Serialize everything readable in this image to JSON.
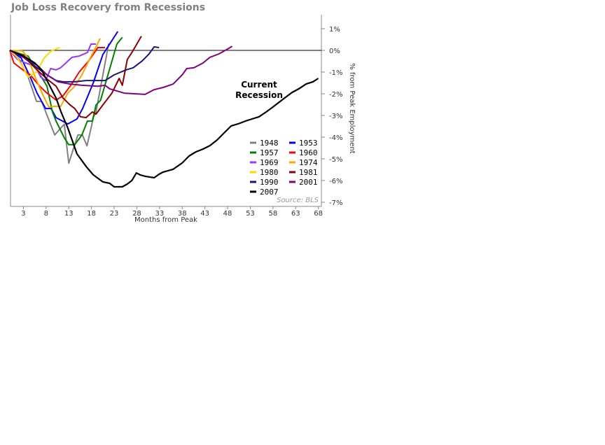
{
  "chart_data": {
    "type": "line",
    "title": "Job Loss Recovery from Recessions",
    "xlabel": "Months from Peak",
    "ylabel": "% from Peak Employment",
    "xlim": [
      0,
      68.5
    ],
    "ylim": [
      -7.3,
      1.6
    ],
    "x_ticks": [
      3,
      8,
      13,
      18,
      23,
      28,
      33,
      38,
      43,
      48,
      53,
      58,
      63,
      68
    ],
    "y_ticks": [
      1,
      0,
      -1,
      -2,
      -3,
      -4,
      -5,
      -6,
      -7
    ],
    "y_tick_labels": [
      "1%",
      "0%",
      "-1%",
      "-2%",
      "-3%",
      "-4%",
      "-5%",
      "-6%",
      "-7%"
    ],
    "y_axis_side": "right",
    "reference_line": 0,
    "annotation": [
      "Current",
      "Recession"
    ],
    "source": "Source: BLS",
    "legend_position": "bottom-right",
    "series": [
      {
        "name": "1948",
        "color": "#808080",
        "points": [
          [
            0,
            0
          ],
          [
            2,
            -0.4
          ],
          [
            4,
            -1.2
          ],
          [
            5.9,
            -2.35
          ],
          [
            7,
            -2.35
          ],
          [
            9.9,
            -3.9
          ],
          [
            12,
            -3.4
          ],
          [
            13,
            -5.2
          ],
          [
            15,
            -3.9
          ],
          [
            16,
            -3.9
          ],
          [
            17,
            -4.4
          ],
          [
            18,
            -3.5
          ],
          [
            18.4,
            -3.1
          ],
          [
            19,
            -2.84
          ],
          [
            21.8,
            0.32
          ]
        ]
      },
      {
        "name": "1953",
        "color": "#0000ff",
        "points": [
          [
            0,
            0
          ],
          [
            2.5,
            -0.35
          ],
          [
            4.5,
            -1.23
          ],
          [
            6,
            -1.97
          ],
          [
            7.9,
            -2.68
          ],
          [
            9.1,
            -2.68
          ],
          [
            10.2,
            -3.1
          ],
          [
            12.8,
            -3.39
          ],
          [
            14.8,
            -3.16
          ],
          [
            16,
            -2.7
          ],
          [
            18.4,
            -1.5
          ],
          [
            20.5,
            -0.2
          ],
          [
            23.8,
            0.87
          ]
        ]
      },
      {
        "name": "1957",
        "color": "#008000",
        "points": [
          [
            0,
            0
          ],
          [
            3,
            -0.2
          ],
          [
            4,
            -0.26
          ],
          [
            6.3,
            -1.0
          ],
          [
            8.2,
            -1.65
          ],
          [
            9.4,
            -2.84
          ],
          [
            10.2,
            -3.26
          ],
          [
            12,
            -4.03
          ],
          [
            13,
            -4.35
          ],
          [
            14.3,
            -4.35
          ],
          [
            15.9,
            -3.9
          ],
          [
            17.1,
            -3.26
          ],
          [
            18.2,
            -3.26
          ],
          [
            19,
            -2.52
          ],
          [
            20,
            -2.3
          ],
          [
            21.8,
            -1.0
          ],
          [
            23.6,
            0.29
          ],
          [
            24.8,
            0.6
          ]
        ]
      },
      {
        "name": "1960",
        "color": "#ff0000",
        "points": [
          [
            0,
            0
          ],
          [
            0.9,
            -0.58
          ],
          [
            2.5,
            -0.84
          ],
          [
            4.5,
            -1.13
          ],
          [
            6.6,
            -1.65
          ],
          [
            8.2,
            -1.97
          ],
          [
            10.2,
            -2.29
          ],
          [
            11.7,
            -2.1
          ],
          [
            13.3,
            -1.65
          ],
          [
            15.3,
            -1.0
          ],
          [
            17.4,
            -0.48
          ],
          [
            19.4,
            0.13
          ],
          [
            21,
            0.13
          ]
        ]
      },
      {
        "name": "1969",
        "color": "#9933ff",
        "points": [
          [
            0,
            0
          ],
          [
            1.7,
            -0.42
          ],
          [
            3.5,
            -0.58
          ],
          [
            5.6,
            -0.74
          ],
          [
            6.8,
            -1.23
          ],
          [
            7.9,
            -1.39
          ],
          [
            9,
            -0.84
          ],
          [
            10.2,
            -0.9
          ],
          [
            11.2,
            -0.8
          ],
          [
            13.7,
            -0.32
          ],
          [
            15.3,
            -0.26
          ],
          [
            17.1,
            -0.1
          ],
          [
            17.9,
            0.29
          ],
          [
            19,
            0.29
          ]
        ]
      },
      {
        "name": "1974",
        "color": "#ffa500",
        "points": [
          [
            0,
            0
          ],
          [
            2.8,
            -0.03
          ],
          [
            4,
            -0.35
          ],
          [
            5.6,
            -1.23
          ],
          [
            7.1,
            -1.97
          ],
          [
            8.6,
            -2.61
          ],
          [
            9.9,
            -2.58
          ],
          [
            11.2,
            -2.58
          ],
          [
            12.8,
            -1.97
          ],
          [
            14.3,
            -1.65
          ],
          [
            15.9,
            -1.13
          ],
          [
            17.4,
            -0.48
          ],
          [
            19,
            0.16
          ],
          [
            19.9,
            0.55
          ]
        ]
      },
      {
        "name": "1980",
        "color": "#ffd700",
        "points": [
          [
            0,
            0
          ],
          [
            1.4,
            -0.26
          ],
          [
            3,
            -0.8
          ],
          [
            4,
            -1.23
          ],
          [
            5.9,
            -1.0
          ],
          [
            7.6,
            -0.35
          ],
          [
            9.1,
            -0.03
          ],
          [
            11,
            0.13
          ]
        ]
      },
      {
        "name": "1981",
        "color": "#8b0000",
        "points": [
          [
            0,
            0
          ],
          [
            3,
            -0.26
          ],
          [
            6,
            -0.9
          ],
          [
            8.2,
            -1.32
          ],
          [
            10.2,
            -1.65
          ],
          [
            11.7,
            -2.19
          ],
          [
            13.3,
            -2.52
          ],
          [
            14.3,
            -2.68
          ],
          [
            15.6,
            -3.06
          ],
          [
            16.8,
            -3.1
          ],
          [
            18.2,
            -2.84
          ],
          [
            19,
            -2.94
          ],
          [
            20.5,
            -2.52
          ],
          [
            22.5,
            -1.97
          ],
          [
            24.1,
            -1.29
          ],
          [
            24.8,
            -1.61
          ],
          [
            25.9,
            -0.42
          ],
          [
            26.9,
            -0.1
          ],
          [
            29,
            0.65
          ]
        ]
      },
      {
        "name": "1990",
        "color": "#191970",
        "points": [
          [
            0,
            0
          ],
          [
            3,
            -0.32
          ],
          [
            6,
            -0.8
          ],
          [
            8.2,
            -1.13
          ],
          [
            10.2,
            -1.39
          ],
          [
            11.7,
            -1.45
          ],
          [
            14.3,
            -1.45
          ],
          [
            16.8,
            -1.39
          ],
          [
            19.4,
            -1.39
          ],
          [
            21,
            -1.39
          ],
          [
            23,
            -1.13
          ],
          [
            25.6,
            -0.9
          ],
          [
            27.2,
            -0.8
          ],
          [
            29.2,
            -0.48
          ],
          [
            30.7,
            -0.16
          ],
          [
            31.8,
            0.16
          ],
          [
            32.9,
            0.13
          ]
        ]
      },
      {
        "name": "2001",
        "color": "#800080",
        "points": [
          [
            0,
            0
          ],
          [
            3,
            -0.32
          ],
          [
            6,
            -0.68
          ],
          [
            8.2,
            -1.13
          ],
          [
            10.6,
            -1.45
          ],
          [
            13.3,
            -1.55
          ],
          [
            15.9,
            -1.61
          ],
          [
            19.4,
            -1.65
          ],
          [
            21,
            -1.61
          ],
          [
            22,
            -1.77
          ],
          [
            25.2,
            -1.97
          ],
          [
            29.8,
            -2.03
          ],
          [
            31.8,
            -1.81
          ],
          [
            33.8,
            -1.71
          ],
          [
            36,
            -1.55
          ],
          [
            38,
            -1.13
          ],
          [
            39,
            -0.84
          ],
          [
            40.6,
            -0.8
          ],
          [
            42.6,
            -0.58
          ],
          [
            44.1,
            -0.32
          ],
          [
            46.1,
            -0.16
          ],
          [
            48,
            0.06
          ],
          [
            49,
            0.19
          ]
        ]
      },
      {
        "name": "2007",
        "color": "#000000",
        "points": [
          [
            0,
            0
          ],
          [
            3,
            -0.26
          ],
          [
            5.5,
            -0.58
          ],
          [
            7,
            -0.9
          ],
          [
            8.6,
            -1.55
          ],
          [
            10.2,
            -2.2
          ],
          [
            11.3,
            -2.84
          ],
          [
            12.8,
            -3.58
          ],
          [
            14.8,
            -4.77
          ],
          [
            16.8,
            -5.35
          ],
          [
            18.4,
            -5.74
          ],
          [
            20.5,
            -6.06
          ],
          [
            22,
            -6.13
          ],
          [
            23,
            -6.29
          ],
          [
            24.8,
            -6.29
          ],
          [
            25.9,
            -6.16
          ],
          [
            26.9,
            -6.0
          ],
          [
            27.9,
            -5.65
          ],
          [
            28.7,
            -5.74
          ],
          [
            29.9,
            -5.81
          ],
          [
            31.8,
            -5.87
          ],
          [
            32.9,
            -5.71
          ],
          [
            33.8,
            -5.61
          ],
          [
            36,
            -5.48
          ],
          [
            38,
            -5.19
          ],
          [
            39.5,
            -4.87
          ],
          [
            41,
            -4.68
          ],
          [
            42.6,
            -4.55
          ],
          [
            44.1,
            -4.39
          ],
          [
            45.7,
            -4.13
          ],
          [
            47.2,
            -3.81
          ],
          [
            48.8,
            -3.48
          ],
          [
            50.3,
            -3.39
          ],
          [
            51.9,
            -3.26
          ],
          [
            53.4,
            -3.16
          ],
          [
            54.9,
            -3.06
          ],
          [
            56.5,
            -2.84
          ],
          [
            58,
            -2.61
          ],
          [
            59.6,
            -2.35
          ],
          [
            60.6,
            -2.19
          ],
          [
            62.2,
            -1.94
          ],
          [
            63.7,
            -1.77
          ],
          [
            65.3,
            -1.55
          ],
          [
            66.8,
            -1.45
          ],
          [
            68,
            -1.29
          ]
        ]
      }
    ]
  }
}
